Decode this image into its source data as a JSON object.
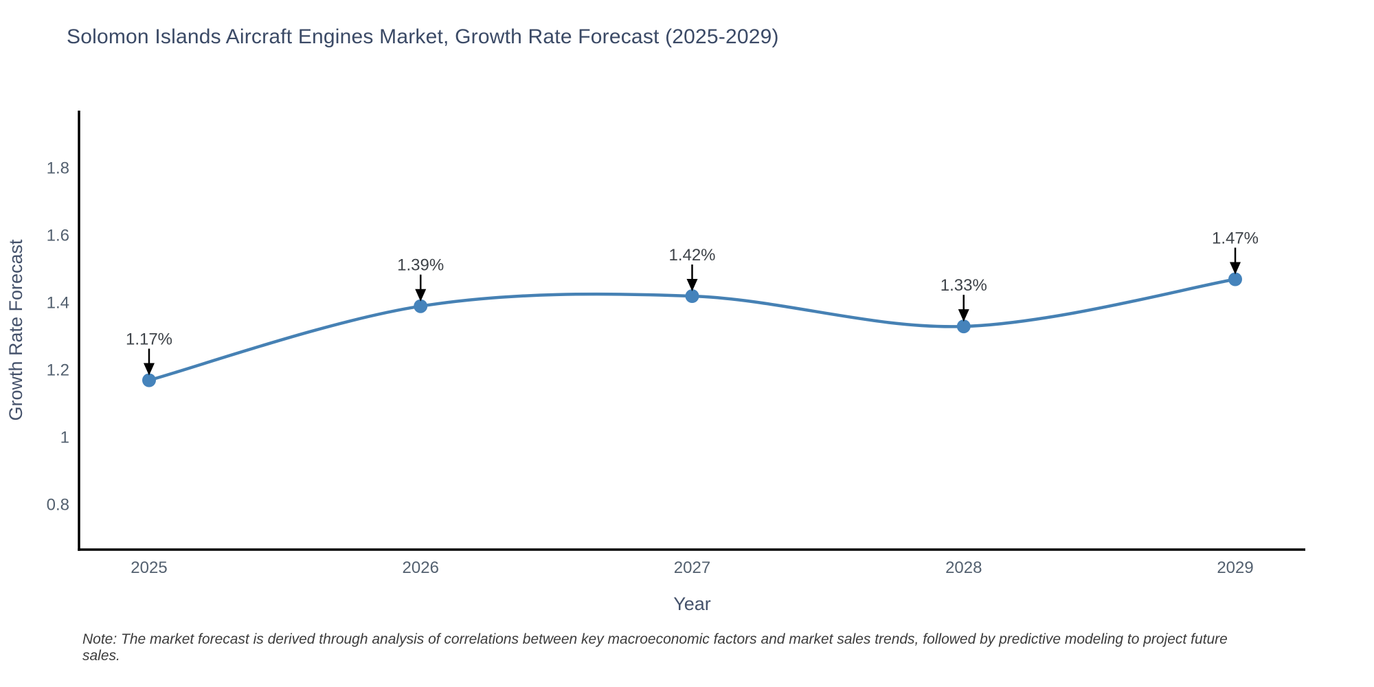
{
  "title": "Solomon Islands Aircraft Engines Market, Growth Rate Forecast (2025-2029)",
  "note": "Note: The market forecast is derived through analysis of correlations between key macroeconomic factors and market sales trends, followed by predictive modeling to project future sales.",
  "chart_data": {
    "type": "line",
    "line_shape": "spline",
    "x": [
      2025,
      2026,
      2027,
      2028,
      2029
    ],
    "values": [
      1.17,
      1.39,
      1.42,
      1.33,
      1.47
    ],
    "point_labels": [
      "1.17%",
      "1.39%",
      "1.42%",
      "1.33%",
      "1.47%"
    ],
    "x_tick_labels": [
      "2025",
      "2026",
      "2027",
      "2028",
      "2029"
    ],
    "y_ticks": [
      0.8,
      1.0,
      1.2,
      1.4,
      1.6,
      1.8
    ],
    "y_tick_labels": [
      "0.8",
      "1",
      "1.2",
      "1.4",
      "1.6",
      "1.8"
    ],
    "xlabel": "Year",
    "ylabel": "Growth Rate Forecast",
    "xlim": [
      2024.742,
      2029.258
    ],
    "ylim": [
      0.667,
      1.971
    ],
    "grid": false,
    "legend": "none",
    "colors": {
      "line": "#4681b4",
      "marker": "#4583bb",
      "arrow": "#000000",
      "axis_line": "#000000",
      "tick_text": "#53606f",
      "axis_title_text": "#45526b",
      "annotation_text": "#3d4248"
    }
  }
}
